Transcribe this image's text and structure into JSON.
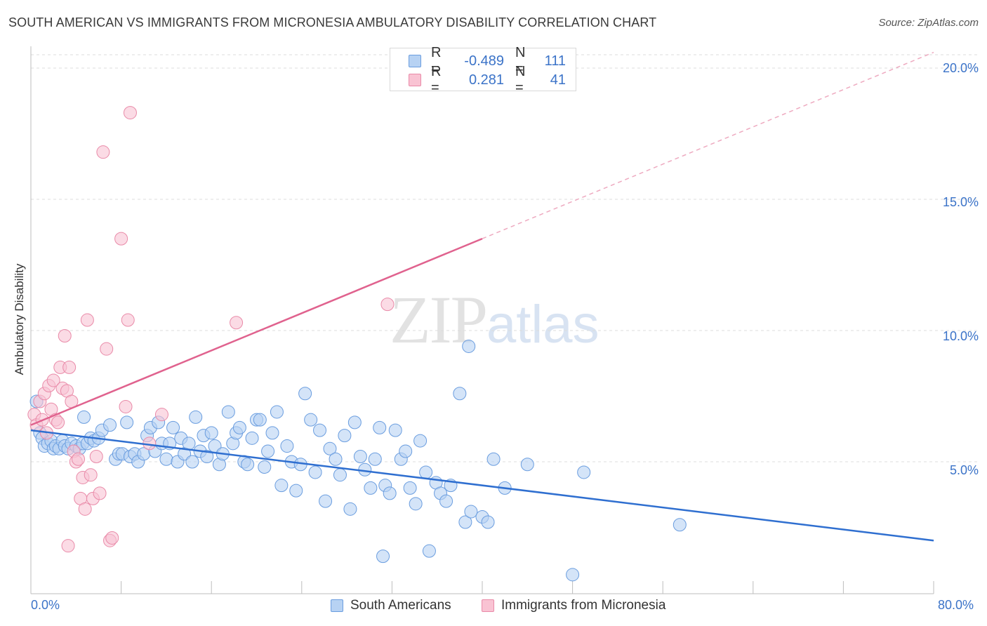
{
  "title": "SOUTH AMERICAN VS IMMIGRANTS FROM MICRONESIA AMBULATORY DISABILITY CORRELATION CHART",
  "source": "Source: ZipAtlas.com",
  "watermark": {
    "zip": "ZIP",
    "atlas": "atlas"
  },
  "legend_top": {
    "rows": [
      {
        "label": "R =",
        "r": "-0.489",
        "n_label": "N =",
        "n": "111",
        "fill": "#b7d2f3",
        "stroke": "#6a9ddf"
      },
      {
        "label": "R =",
        "r": "0.281",
        "n_label": "N =",
        "n": "41",
        "fill": "#f9c3d3",
        "stroke": "#e98aa8"
      }
    ]
  },
  "legend_bottom": [
    {
      "label": "South Americans",
      "fill": "#b7d2f3",
      "stroke": "#6a9ddf"
    },
    {
      "label": "Immigrants from Micronesia",
      "fill": "#f9c3d3",
      "stroke": "#e98aa8"
    }
  ],
  "axes": {
    "ylabel": "Ambulatory Disability",
    "x_min_label": "0.0%",
    "x_max_label": "80.0%",
    "y_ticks": [
      "20.0%",
      "15.0%",
      "10.0%",
      "5.0%"
    ]
  },
  "chart_data": {
    "type": "scatter",
    "title": "SOUTH AMERICAN VS IMMIGRANTS FROM MICRONESIA AMBULATORY DISABILITY CORRELATION CHART",
    "xlabel": "",
    "ylabel": "Ambulatory Disability",
    "xlim": [
      0,
      80
    ],
    "ylim": [
      0,
      20.5
    ],
    "y_ticks": [
      5,
      10,
      15,
      20
    ],
    "grid": true,
    "series": [
      {
        "name": "South Americans",
        "color": "#6a9ddf",
        "fill": "#b7d2f3",
        "points": [
          [
            0.5,
            7.3
          ],
          [
            0.8,
            6.1
          ],
          [
            1.0,
            5.9
          ],
          [
            1.2,
            5.6
          ],
          [
            1.5,
            5.7
          ],
          [
            1.8,
            5.8
          ],
          [
            2.0,
            5.5
          ],
          [
            2.2,
            5.6
          ],
          [
            2.5,
            5.5
          ],
          [
            2.8,
            5.8
          ],
          [
            3.0,
            5.6
          ],
          [
            3.3,
            5.5
          ],
          [
            3.6,
            5.7
          ],
          [
            4.0,
            5.6
          ],
          [
            4.3,
            5.5
          ],
          [
            4.6,
            5.7
          ],
          [
            5.0,
            5.7
          ],
          [
            5.3,
            5.9
          ],
          [
            5.6,
            5.8
          ],
          [
            6.0,
            5.9
          ],
          [
            4.7,
            6.7
          ],
          [
            6.3,
            6.2
          ],
          [
            7.0,
            6.4
          ],
          [
            7.5,
            5.1
          ],
          [
            7.8,
            5.3
          ],
          [
            8.1,
            5.3
          ],
          [
            8.5,
            6.5
          ],
          [
            8.8,
            5.2
          ],
          [
            9.2,
            5.3
          ],
          [
            9.5,
            5.0
          ],
          [
            10.0,
            5.3
          ],
          [
            10.3,
            6.0
          ],
          [
            10.6,
            6.3
          ],
          [
            11.0,
            5.4
          ],
          [
            11.3,
            6.5
          ],
          [
            11.6,
            5.7
          ],
          [
            12.0,
            5.1
          ],
          [
            12.3,
            5.7
          ],
          [
            12.6,
            6.3
          ],
          [
            13.0,
            5.0
          ],
          [
            13.3,
            5.9
          ],
          [
            13.6,
            5.3
          ],
          [
            14.0,
            5.7
          ],
          [
            14.3,
            5.0
          ],
          [
            14.6,
            6.7
          ],
          [
            15.0,
            5.4
          ],
          [
            15.3,
            6.0
          ],
          [
            15.6,
            5.2
          ],
          [
            16.0,
            6.1
          ],
          [
            16.3,
            5.6
          ],
          [
            16.7,
            4.9
          ],
          [
            17.0,
            5.3
          ],
          [
            17.5,
            6.9
          ],
          [
            17.9,
            5.7
          ],
          [
            18.2,
            6.1
          ],
          [
            18.5,
            6.3
          ],
          [
            18.9,
            5.0
          ],
          [
            19.2,
            4.9
          ],
          [
            19.6,
            5.9
          ],
          [
            20.0,
            6.6
          ],
          [
            20.3,
            6.6
          ],
          [
            20.7,
            4.8
          ],
          [
            21.0,
            5.4
          ],
          [
            21.4,
            6.1
          ],
          [
            21.8,
            6.9
          ],
          [
            22.2,
            4.1
          ],
          [
            22.7,
            5.6
          ],
          [
            23.1,
            5.0
          ],
          [
            23.5,
            3.9
          ],
          [
            23.9,
            4.9
          ],
          [
            24.3,
            7.6
          ],
          [
            24.8,
            6.6
          ],
          [
            25.2,
            4.6
          ],
          [
            25.6,
            6.2
          ],
          [
            26.1,
            3.5
          ],
          [
            26.5,
            5.5
          ],
          [
            27.0,
            5.1
          ],
          [
            27.4,
            4.5
          ],
          [
            27.8,
            6.0
          ],
          [
            28.3,
            3.2
          ],
          [
            28.7,
            6.5
          ],
          [
            29.2,
            5.2
          ],
          [
            29.6,
            4.7
          ],
          [
            30.1,
            4.0
          ],
          [
            30.5,
            5.1
          ],
          [
            30.9,
            6.3
          ],
          [
            31.4,
            4.1
          ],
          [
            31.8,
            3.8
          ],
          [
            32.3,
            6.2
          ],
          [
            32.8,
            5.1
          ],
          [
            33.2,
            5.4
          ],
          [
            33.6,
            4.0
          ],
          [
            34.1,
            3.4
          ],
          [
            34.5,
            5.8
          ],
          [
            35.0,
            4.6
          ],
          [
            35.3,
            1.6
          ],
          [
            35.9,
            4.2
          ],
          [
            36.3,
            3.8
          ],
          [
            36.8,
            3.5
          ],
          [
            37.2,
            4.1
          ],
          [
            38.0,
            7.6
          ],
          [
            38.5,
            2.7
          ],
          [
            39.0,
            3.1
          ],
          [
            40.0,
            2.9
          ],
          [
            40.5,
            2.7
          ],
          [
            41.0,
            5.1
          ],
          [
            42.0,
            4.0
          ],
          [
            44.0,
            4.9
          ],
          [
            48.0,
            0.7
          ],
          [
            49.0,
            4.6
          ],
          [
            57.5,
            2.6
          ],
          [
            38.8,
            9.4
          ],
          [
            31.2,
            1.4
          ]
        ],
        "trend": {
          "x0": 0,
          "y0": 6.2,
          "x1": 80,
          "y1": 2.0
        }
      },
      {
        "name": "Immigrants from Micronesia",
        "color": "#e98aa8",
        "fill": "#f9c3d3",
        "points": [
          [
            0.3,
            6.8
          ],
          [
            0.5,
            6.4
          ],
          [
            0.8,
            7.3
          ],
          [
            1.0,
            6.6
          ],
          [
            1.2,
            7.6
          ],
          [
            1.4,
            6.1
          ],
          [
            1.6,
            7.9
          ],
          [
            1.8,
            7.0
          ],
          [
            2.0,
            8.1
          ],
          [
            2.2,
            6.6
          ],
          [
            2.4,
            6.5
          ],
          [
            2.6,
            8.6
          ],
          [
            2.8,
            7.8
          ],
          [
            3.0,
            9.8
          ],
          [
            3.2,
            7.7
          ],
          [
            3.4,
            8.6
          ],
          [
            3.6,
            7.3
          ],
          [
            3.8,
            5.4
          ],
          [
            4.0,
            5.0
          ],
          [
            4.2,
            5.1
          ],
          [
            4.4,
            3.6
          ],
          [
            4.6,
            4.4
          ],
          [
            4.8,
            3.2
          ],
          [
            5.0,
            10.4
          ],
          [
            5.3,
            4.5
          ],
          [
            5.5,
            3.6
          ],
          [
            5.8,
            5.2
          ],
          [
            6.1,
            3.8
          ],
          [
            6.4,
            16.8
          ],
          [
            6.7,
            9.3
          ],
          [
            7.0,
            2.0
          ],
          [
            7.2,
            2.1
          ],
          [
            8.0,
            13.5
          ],
          [
            8.4,
            7.1
          ],
          [
            8.6,
            10.4
          ],
          [
            8.8,
            18.3
          ],
          [
            10.5,
            5.7
          ],
          [
            11.6,
            6.8
          ],
          [
            3.3,
            1.8
          ],
          [
            18.2,
            10.3
          ],
          [
            31.6,
            11.0
          ]
        ],
        "trend": {
          "x0": 0,
          "y0": 6.4,
          "x1": 40,
          "y1": 13.5
        },
        "trend_extension": {
          "x0": 40,
          "y0": 13.5,
          "x1": 80,
          "y1": 20.6
        }
      }
    ]
  }
}
